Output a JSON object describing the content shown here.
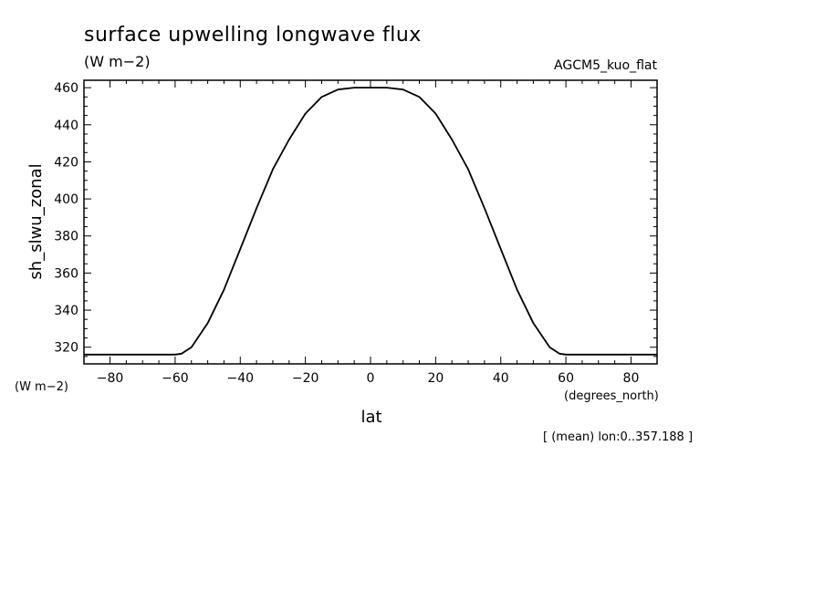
{
  "chart_data": {
    "type": "line",
    "title": "surface upwelling longwave flux",
    "units_label": "(W m−2)",
    "model_label": "AGCM5_kuo_flat",
    "xlabel": "lat",
    "x_units": "(degrees_north)",
    "ylabel": "sh_slwu_zonal",
    "y_units": "(W m−2)",
    "footnote": "[ (mean) lon:0..357.188 ]",
    "xlim": [
      -88,
      88
    ],
    "ylim": [
      311,
      464
    ],
    "x_ticks": [
      -80,
      -60,
      -40,
      -20,
      0,
      20,
      40,
      60,
      80
    ],
    "x_tick_labels": [
      "−80",
      "−60",
      "−40",
      "−20",
      "0",
      "20",
      "40",
      "60",
      "80"
    ],
    "y_ticks": [
      320,
      340,
      360,
      380,
      400,
      420,
      440,
      460
    ],
    "y_tick_labels": [
      "320",
      "340",
      "360",
      "380",
      "400",
      "420",
      "440",
      "460"
    ],
    "grid": false,
    "series": [
      {
        "color": "#000000",
        "x": [
          -88,
          -80,
          -70,
          -60,
          -58,
          -55,
          -50,
          -45,
          -40,
          -35,
          -30,
          -25,
          -20,
          -15,
          -10,
          -5,
          0,
          5,
          10,
          15,
          20,
          25,
          30,
          35,
          40,
          45,
          50,
          55,
          58,
          60,
          70,
          80,
          88
        ],
        "y": [
          316,
          316,
          316,
          316,
          316.5,
          320,
          333,
          351,
          373,
          395,
          416,
          432,
          446,
          455,
          459,
          460,
          460,
          460,
          459,
          455,
          446,
          432,
          416,
          395,
          373,
          351,
          333,
          320,
          316.5,
          316,
          316,
          316,
          316
        ]
      }
    ]
  }
}
